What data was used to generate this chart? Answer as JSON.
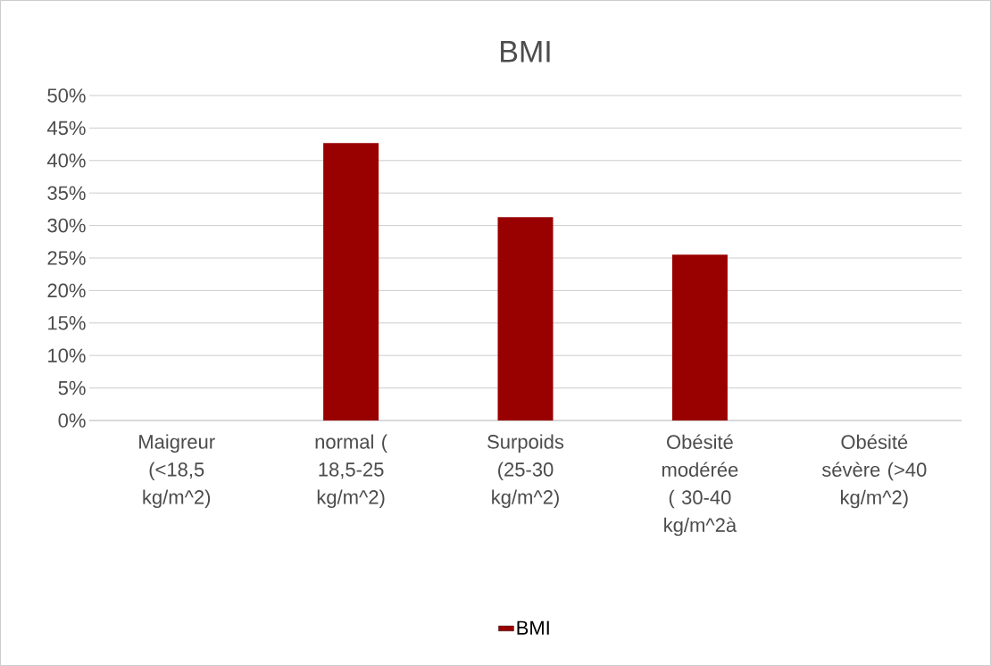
{
  "chart_data": {
    "type": "bar",
    "title": "BMI",
    "categories": [
      "Maigreur (<18,5 kg/m^2)",
      "normal ( 18,5-25 kg/m^2)",
      "Surpoids (25-30 kg/m^2)",
      "Obésité modérée ( 30-40 kg/m^2à",
      "Obésité sévère (>40 kg/m^2)"
    ],
    "series": [
      {
        "name": "BMI",
        "color": "#990000",
        "values": [
          0,
          42.7,
          31.3,
          25.5,
          0
        ]
      }
    ],
    "ylim": [
      0,
      50
    ],
    "yticks": [
      {
        "value": 0,
        "label": "0%"
      },
      {
        "value": 5,
        "label": "5%"
      },
      {
        "value": 10,
        "label": "10%"
      },
      {
        "value": 15,
        "label": "15%"
      },
      {
        "value": 20,
        "label": "20%"
      },
      {
        "value": 25,
        "label": "25%"
      },
      {
        "value": 30,
        "label": "30%"
      },
      {
        "value": 35,
        "label": "35%"
      },
      {
        "value": 40,
        "label": "40%"
      },
      {
        "value": 45,
        "label": "45%"
      },
      {
        "value": 50,
        "label": "50%"
      }
    ],
    "grid": "y",
    "legend": "bottom"
  }
}
